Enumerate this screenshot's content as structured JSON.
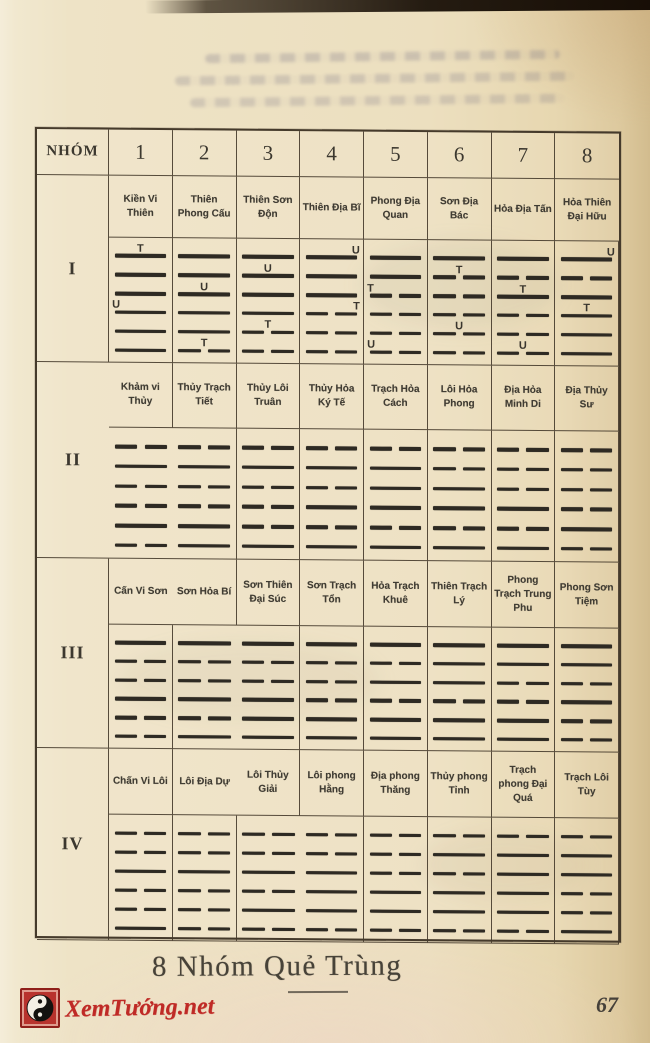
{
  "page": {
    "caption": "8 Nhóm Quẻ Trùng",
    "page_number": "67",
    "watermark_text": "XemTướng.net",
    "colors": {
      "paper": "#eee3c6",
      "table_line": "#453a2b",
      "ink": "#35312a",
      "watermark_red": "#bf2a26"
    }
  },
  "table": {
    "corner_label": "NHÓM",
    "group_numbers": [
      "1",
      "2",
      "3",
      "4",
      "5",
      "6",
      "7",
      "8"
    ],
    "rows": [
      {
        "label": "I",
        "hexagrams": [
          {
            "name": "Kiền Vi Thiên",
            "lines": [
              1,
              1,
              1,
              1,
              1,
              1
            ],
            "marks": [
              {
                "line": 1,
                "label": "T",
                "align": "center"
              },
              {
                "line": 4,
                "label": "U",
                "align": "left"
              }
            ]
          },
          {
            "name": "Thiên Phong Cấu",
            "lines": [
              1,
              1,
              1,
              1,
              1,
              0
            ],
            "marks": [
              {
                "line": 3,
                "label": "U",
                "align": "center"
              },
              {
                "line": 6,
                "label": "T",
                "align": "center"
              }
            ]
          },
          {
            "name": "Thiên Sơn Độn",
            "lines": [
              1,
              1,
              1,
              1,
              0,
              0
            ],
            "marks": [
              {
                "line": 2,
                "label": "U",
                "align": "center"
              },
              {
                "line": 5,
                "label": "T",
                "align": "center"
              }
            ]
          },
          {
            "name": "Thiên Địa Bĩ",
            "lines": [
              1,
              1,
              1,
              0,
              0,
              0
            ],
            "marks": [
              {
                "line": 1,
                "label": "U",
                "align": "right"
              },
              {
                "line": 4,
                "label": "T",
                "align": "right"
              }
            ]
          },
          {
            "name": "Phong Địa Quan",
            "lines": [
              1,
              1,
              0,
              0,
              0,
              0
            ],
            "marks": [
              {
                "line": 3,
                "label": "T",
                "align": "left"
              },
              {
                "line": 6,
                "label": "U",
                "align": "left"
              }
            ]
          },
          {
            "name": "Sơn Địa Bác",
            "lines": [
              1,
              0,
              0,
              0,
              0,
              0
            ],
            "marks": [
              {
                "line": 2,
                "label": "T",
                "align": "center"
              },
              {
                "line": 5,
                "label": "U",
                "align": "center"
              }
            ]
          },
          {
            "name": "Hỏa Địa Tấn",
            "lines": [
              1,
              0,
              1,
              0,
              0,
              0
            ],
            "marks": [
              {
                "line": 3,
                "label": "T",
                "align": "center"
              },
              {
                "line": 6,
                "label": "U",
                "align": "center"
              }
            ]
          },
          {
            "name": "Hỏa Thiên Đại Hữu",
            "lines": [
              1,
              0,
              1,
              1,
              1,
              1
            ],
            "marks": [
              {
                "line": 1,
                "label": "U",
                "align": "right"
              },
              {
                "line": 4,
                "label": "T",
                "align": "center"
              }
            ]
          }
        ]
      },
      {
        "label": "II",
        "hexagrams": [
          {
            "name": "Khảm vi Thủy",
            "lines": [
              0,
              1,
              0,
              0,
              1,
              0
            ],
            "marks": []
          },
          {
            "name": "Thủy Trạch Tiết",
            "lines": [
              0,
              1,
              0,
              0,
              1,
              1
            ],
            "marks": []
          },
          {
            "name": "Thủy Lôi Truân",
            "lines": [
              0,
              1,
              0,
              0,
              0,
              1
            ],
            "marks": []
          },
          {
            "name": "Thủy Hỏa Ký Tế",
            "lines": [
              0,
              1,
              0,
              1,
              0,
              1
            ],
            "marks": []
          },
          {
            "name": "Trạch Hỏa Cách",
            "lines": [
              0,
              1,
              1,
              1,
              0,
              1
            ],
            "marks": []
          },
          {
            "name": "Lôi Hỏa Phong",
            "lines": [
              0,
              0,
              1,
              1,
              0,
              1
            ],
            "marks": []
          },
          {
            "name": "Địa Hỏa Minh Di",
            "lines": [
              0,
              0,
              0,
              1,
              0,
              1
            ],
            "marks": []
          },
          {
            "name": "Địa Thủy Sư",
            "lines": [
              0,
              0,
              0,
              0,
              1,
              0
            ],
            "marks": []
          }
        ]
      },
      {
        "label": "III",
        "hexagrams": [
          {
            "name": "Cấn Vi Sơn",
            "lines": [
              1,
              0,
              0,
              1,
              0,
              0
            ],
            "marks": []
          },
          {
            "name": "Sơn Hỏa Bí",
            "lines": [
              1,
              0,
              0,
              1,
              0,
              1
            ],
            "marks": []
          },
          {
            "name": "Sơn Thiên Đại Súc",
            "lines": [
              1,
              0,
              0,
              1,
              1,
              1
            ],
            "marks": []
          },
          {
            "name": "Sơn Trạch Tổn",
            "lines": [
              1,
              0,
              0,
              0,
              1,
              1
            ],
            "marks": []
          },
          {
            "name": "Hỏa Trạch Khuê",
            "lines": [
              1,
              0,
              1,
              0,
              1,
              1
            ],
            "marks": []
          },
          {
            "name": "Thiên Trạch Lý",
            "lines": [
              1,
              1,
              1,
              0,
              1,
              1
            ],
            "marks": []
          },
          {
            "name": "Phong Trạch Trung Phu",
            "lines": [
              1,
              1,
              0,
              0,
              1,
              1
            ],
            "marks": []
          },
          {
            "name": "Phong Sơn Tiệm",
            "lines": [
              1,
              1,
              0,
              1,
              0,
              0
            ],
            "marks": []
          }
        ]
      },
      {
        "label": "IV",
        "hexagrams": [
          {
            "name": "Chấn Vi Lôi",
            "lines": [
              0,
              0,
              1,
              0,
              0,
              1
            ],
            "marks": []
          },
          {
            "name": "Lôi Địa Dự",
            "lines": [
              0,
              0,
              1,
              0,
              0,
              0
            ],
            "marks": []
          },
          {
            "name": "Lôi Thủy Giải",
            "lines": [
              0,
              0,
              1,
              0,
              1,
              0
            ],
            "marks": []
          },
          {
            "name": "Lôi phong Hằng",
            "lines": [
              0,
              0,
              1,
              1,
              1,
              0
            ],
            "marks": []
          },
          {
            "name": "Địa phong Thăng",
            "lines": [
              0,
              0,
              0,
              1,
              1,
              0
            ],
            "marks": []
          },
          {
            "name": "Thủy phong Tỉnh",
            "lines": [
              0,
              1,
              0,
              1,
              1,
              0
            ],
            "marks": []
          },
          {
            "name": "Trạch phong Đại Quá",
            "lines": [
              0,
              1,
              1,
              1,
              1,
              0
            ],
            "marks": []
          },
          {
            "name": "Trạch Lôi Tùy",
            "lines": [
              0,
              1,
              1,
              0,
              0,
              1
            ],
            "marks": []
          }
        ]
      }
    ]
  }
}
